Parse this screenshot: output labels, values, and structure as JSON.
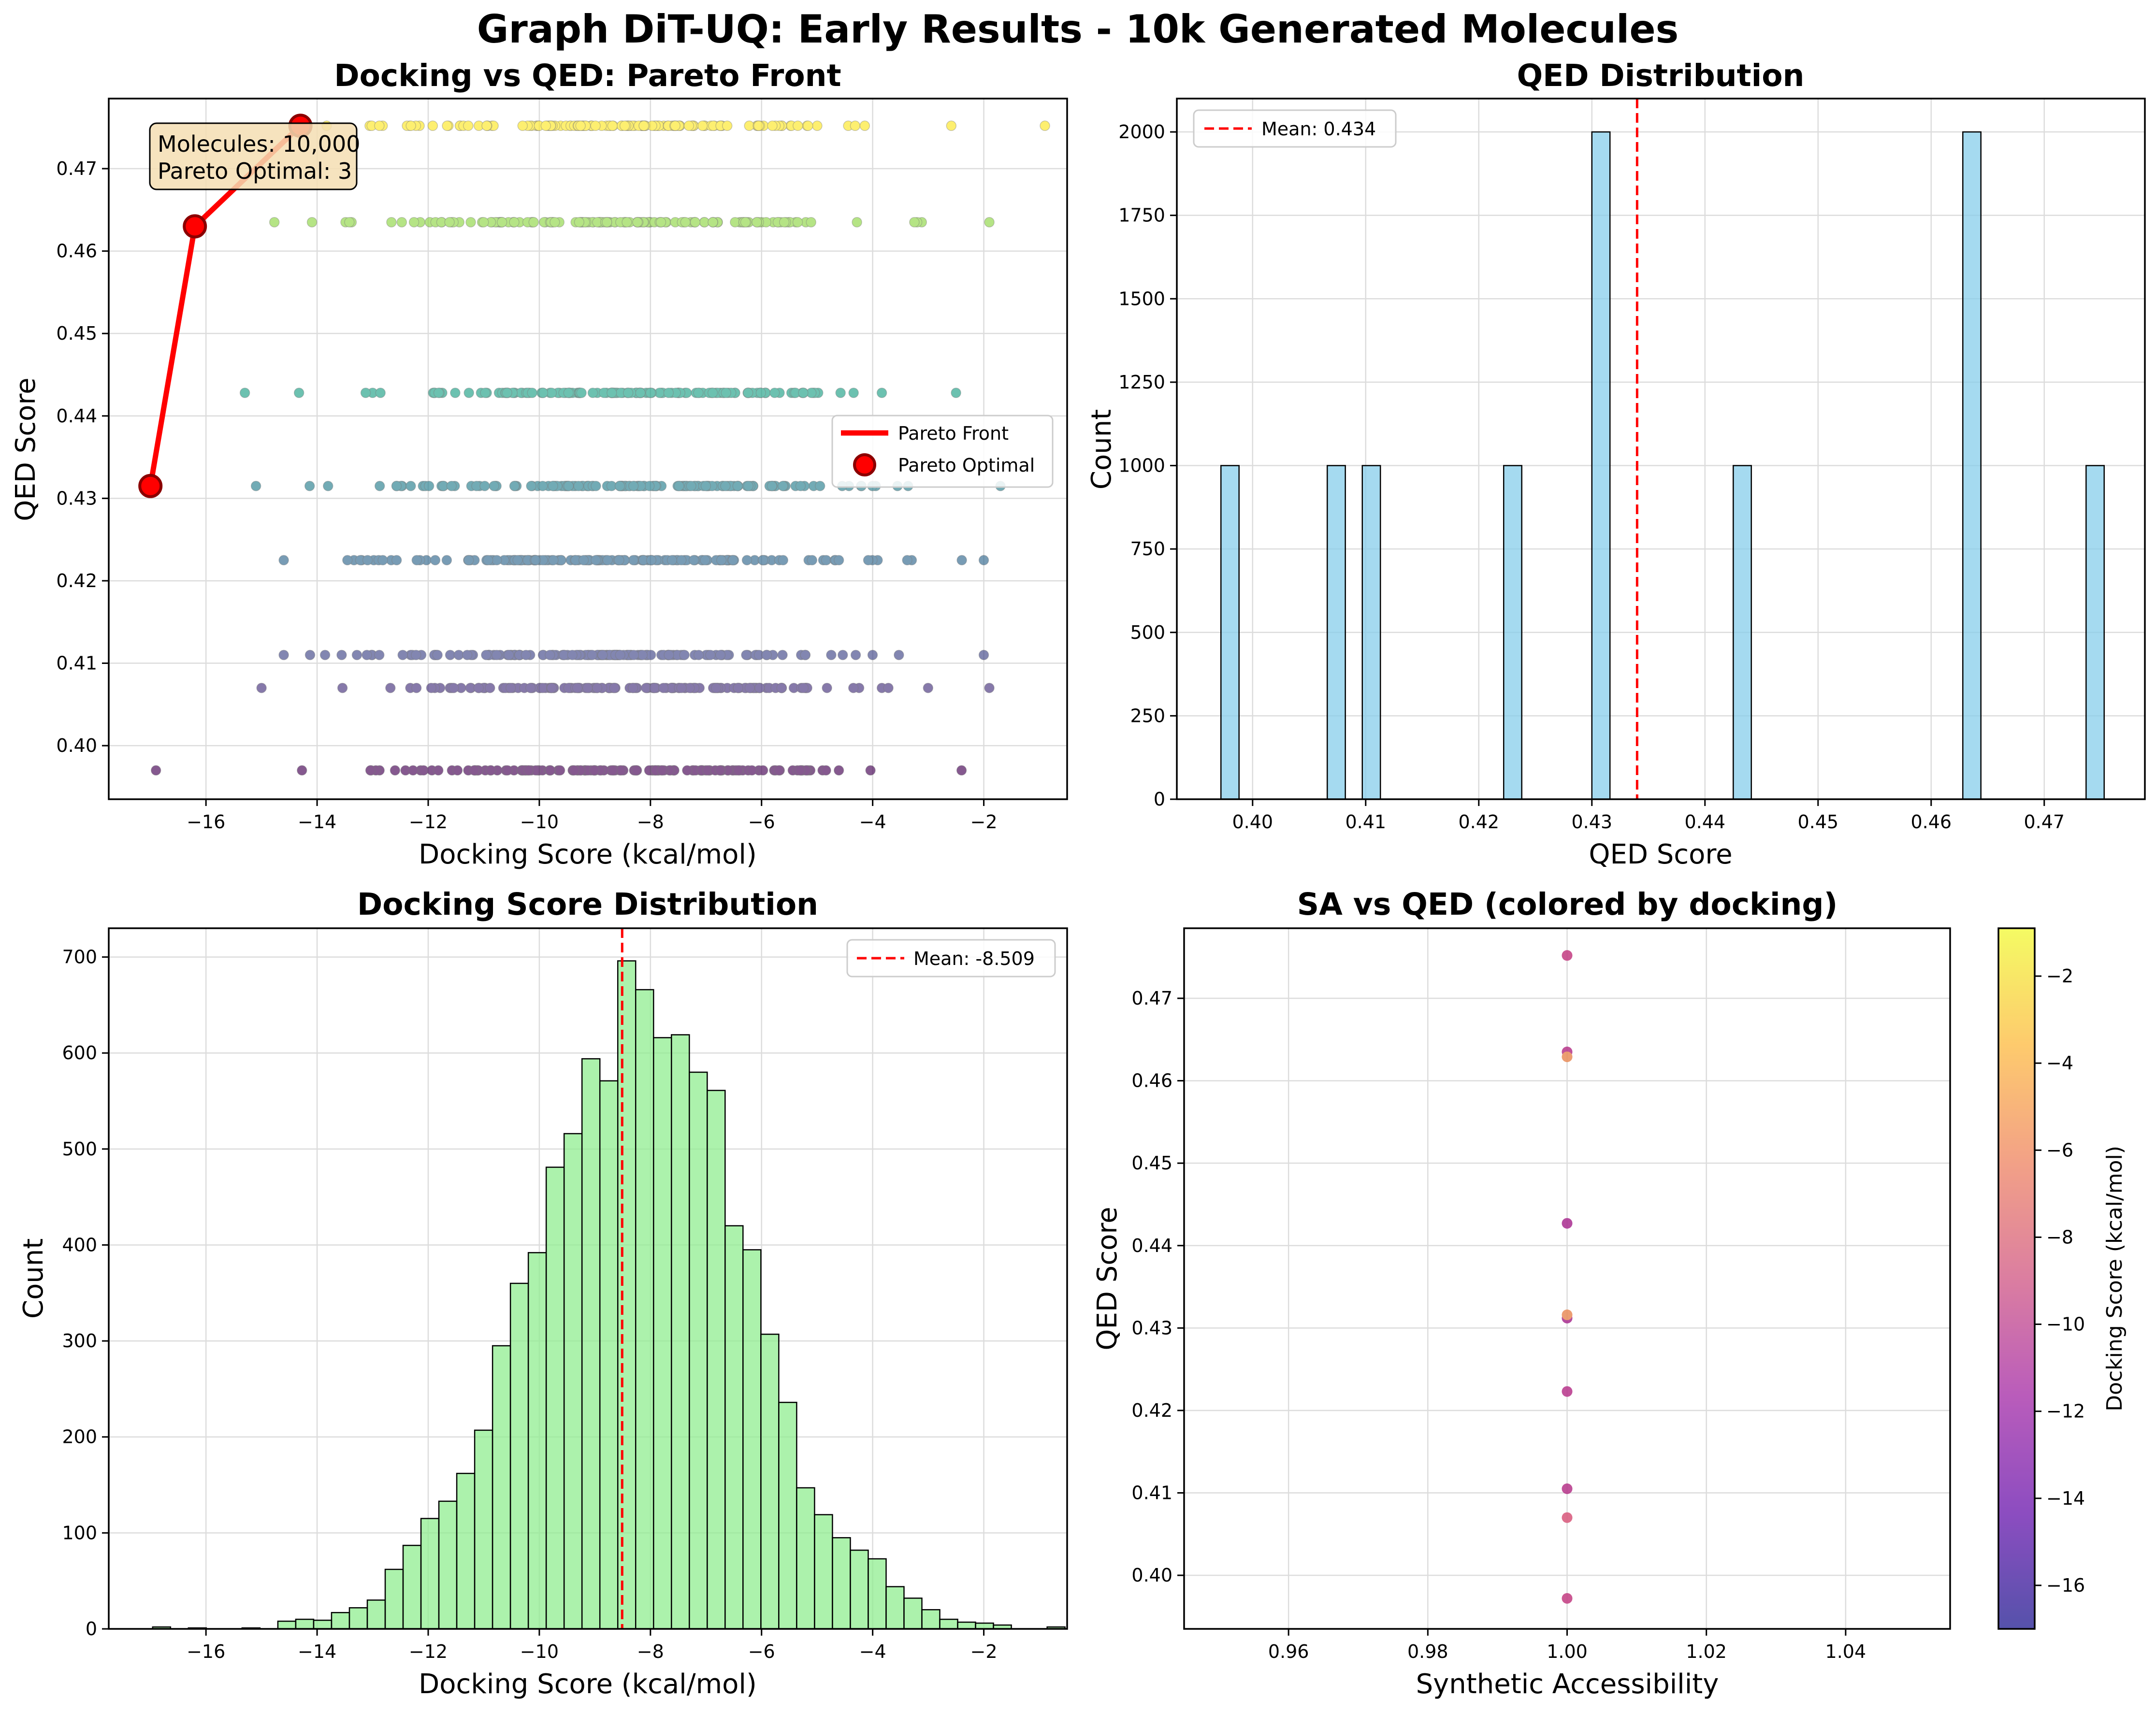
{
  "figure": {
    "suptitle": "Graph DiT-UQ: Early Results - 10k Generated Molecules"
  },
  "colors": {
    "pareto": "#ff0000",
    "hist_qed": "#87ceeb",
    "hist_dock": "#90ee90",
    "mean_line": "#ff0000",
    "stats_box": "#f5deb3",
    "grid": "#dcdcdc"
  },
  "chart_data": [
    {
      "id": "pareto",
      "type": "scatter",
      "title": "Docking vs QED: Pareto Front",
      "xlabel": "Docking Score (kcal/mol)",
      "ylabel": "QED Score",
      "xlim": [
        -17.75,
        -0.5
      ],
      "ylim": [
        0.3935,
        0.4785
      ],
      "xticks": [
        -16,
        -14,
        -12,
        -10,
        -8,
        -6,
        -4,
        -2
      ],
      "yticks": [
        0.4,
        0.41,
        0.42,
        0.43,
        0.44,
        0.45,
        0.46,
        0.47
      ],
      "xtick_labels": [
        "−16",
        "−14",
        "−12",
        "−10",
        "−8",
        "−6",
        "−4",
        "−2"
      ],
      "ytick_labels": [
        "0.40",
        "0.41",
        "0.42",
        "0.43",
        "0.44",
        "0.45",
        "0.46",
        "0.47"
      ],
      "colormap": "viridis",
      "qed_levels": [
        {
          "qed": 0.397,
          "docking_range": [
            -16.9,
            -2.4
          ],
          "color": "#440154"
        },
        {
          "qed": 0.407,
          "docking_range": [
            -15.0,
            -1.9
          ],
          "color": "#46327e"
        },
        {
          "qed": 0.411,
          "docking_range": [
            -14.6,
            -2.0
          ],
          "color": "#404688"
        },
        {
          "qed": 0.4225,
          "docking_range": [
            -14.6,
            -2.0
          ],
          "color": "#31688e"
        },
        {
          "qed": 0.4315,
          "docking_range": [
            -15.1,
            -1.7
          ],
          "color": "#277f8e"
        },
        {
          "qed": 0.4428,
          "docking_range": [
            -15.3,
            -2.5
          ],
          "color": "#1fa187"
        },
        {
          "qed": 0.4635,
          "docking_range": [
            -16.2,
            -1.9
          ],
          "color": "#8fd744"
        },
        {
          "qed": 0.4752,
          "docking_range": [
            -14.2,
            -0.9
          ],
          "color": "#fde725"
        }
      ],
      "pareto_front": {
        "x": [
          -17.0,
          -16.2,
          -14.3
        ],
        "y": [
          0.4315,
          0.463,
          0.4752
        ]
      },
      "legend": {
        "entries": [
          "Pareto Front",
          "Pareto Optimal"
        ],
        "placement": "center-right"
      },
      "stats_text": [
        "Molecules: 10,000",
        "Pareto Optimal: 3"
      ]
    },
    {
      "id": "qed_hist",
      "type": "bar",
      "title": "QED Distribution",
      "xlabel": "QED Score",
      "ylabel": "Count",
      "xlim": [
        0.3933,
        0.4789
      ],
      "ylim": [
        0,
        2100
      ],
      "xticks": [
        0.4,
        0.41,
        0.42,
        0.43,
        0.44,
        0.45,
        0.46,
        0.47
      ],
      "yticks": [
        0,
        250,
        500,
        750,
        1000,
        1250,
        1500,
        1750,
        2000
      ],
      "xtick_labels": [
        "0.40",
        "0.41",
        "0.42",
        "0.43",
        "0.44",
        "0.45",
        "0.46",
        "0.47"
      ],
      "ytick_labels": [
        "0",
        "250",
        "500",
        "750",
        "1000",
        "1250",
        "1500",
        "1750",
        "2000"
      ],
      "bins": [
        {
          "x0": 0.3972,
          "x1": 0.3988,
          "count": 1000
        },
        {
          "x0": 0.4066,
          "x1": 0.4082,
          "count": 1000
        },
        {
          "x0": 0.4097,
          "x1": 0.4113,
          "count": 1000
        },
        {
          "x0": 0.4222,
          "x1": 0.4238,
          "count": 1000
        },
        {
          "x0": 0.43,
          "x1": 0.4316,
          "count": 2000
        },
        {
          "x0": 0.4425,
          "x1": 0.4441,
          "count": 1000
        },
        {
          "x0": 0.4628,
          "x1": 0.4644,
          "count": 2000
        },
        {
          "x0": 0.4737,
          "x1": 0.4753,
          "count": 1000
        }
      ],
      "mean": 0.434,
      "legend": {
        "entries": [
          "Mean: 0.434"
        ],
        "placement": "top-left"
      }
    },
    {
      "id": "dock_hist",
      "type": "bar",
      "title": "Docking Score Distribution",
      "xlabel": "Docking Score (kcal/mol)",
      "ylabel": "Count",
      "xlim": [
        -17.75,
        -0.5
      ],
      "ylim": [
        0,
        730
      ],
      "xticks": [
        -16,
        -14,
        -12,
        -10,
        -8,
        -6,
        -4,
        -2
      ],
      "yticks": [
        0,
        100,
        200,
        300,
        400,
        500,
        600,
        700
      ],
      "xtick_labels": [
        "−16",
        "−14",
        "−12",
        "−10",
        "−8",
        "−6",
        "−4",
        "−2"
      ],
      "ytick_labels": [
        "0",
        "100",
        "200",
        "300",
        "400",
        "500",
        "600",
        "700"
      ],
      "bin_start": -16.96,
      "bin_width": 0.322,
      "counts": [
        2,
        0,
        1,
        0,
        0,
        1,
        0,
        8,
        10,
        9,
        17,
        22,
        30,
        62,
        87,
        115,
        133,
        162,
        207,
        295,
        360,
        392,
        481,
        516,
        594,
        571,
        696,
        666,
        616,
        619,
        580,
        561,
        420,
        395,
        307,
        236,
        147,
        119,
        95,
        82,
        73,
        44,
        32,
        20,
        10,
        7,
        6,
        4,
        0,
        0,
        2
      ],
      "mean": -8.509,
      "legend": {
        "entries": [
          "Mean: -8.509"
        ],
        "placement": "top-right"
      }
    },
    {
      "id": "sa_qed",
      "type": "scatter",
      "title": "SA vs QED (colored by docking)",
      "xlabel": "Synthetic Accessibility",
      "ylabel": "QED Score",
      "xlim": [
        0.945,
        1.055
      ],
      "ylim": [
        0.3935,
        0.4785
      ],
      "xticks": [
        0.96,
        0.98,
        1.0,
        1.02,
        1.04
      ],
      "yticks": [
        0.4,
        0.41,
        0.42,
        0.43,
        0.44,
        0.45,
        0.46,
        0.47
      ],
      "xtick_labels": [
        "0.96",
        "0.98",
        "1.00",
        "1.02",
        "1.04"
      ],
      "ytick_labels": [
        "0.40",
        "0.41",
        "0.42",
        "0.43",
        "0.44",
        "0.45",
        "0.46",
        "0.47"
      ],
      "points": [
        {
          "x": 1.0,
          "y": 0.3972,
          "color": "#c23b80"
        },
        {
          "x": 1.0,
          "y": 0.407,
          "color": "#d8577a"
        },
        {
          "x": 1.0,
          "y": 0.4105,
          "color": "#b63489"
        },
        {
          "x": 1.0,
          "y": 0.4223,
          "color": "#b63489"
        },
        {
          "x": 1.0,
          "y": 0.4312,
          "color": "#a82c8f"
        },
        {
          "x": 1.0,
          "y": 0.4316,
          "color": "#e98d5a"
        },
        {
          "x": 1.0,
          "y": 0.4427,
          "color": "#a82c8f"
        },
        {
          "x": 1.0,
          "y": 0.4635,
          "color": "#b63489"
        },
        {
          "x": 1.0,
          "y": 0.4629,
          "color": "#e98d5a"
        },
        {
          "x": 1.0,
          "y": 0.4752,
          "color": "#c23b80"
        }
      ],
      "colorbar": {
        "label": "Docking Score (kcal/mol)",
        "range": [
          -17.0,
          -0.9
        ],
        "ticks": [
          -16,
          -14,
          -12,
          -10,
          -8,
          -6,
          -4,
          -2
        ],
        "tick_labels": [
          "−16",
          "−14",
          "−12",
          "−10",
          "−8",
          "−6",
          "−4",
          "−2"
        ],
        "colormap": "plasma",
        "stops": [
          "#0d0887",
          "#5c01a6",
          "#9c179e",
          "#cc4778",
          "#ed7953",
          "#fdb42f",
          "#f0f921"
        ]
      }
    }
  ]
}
